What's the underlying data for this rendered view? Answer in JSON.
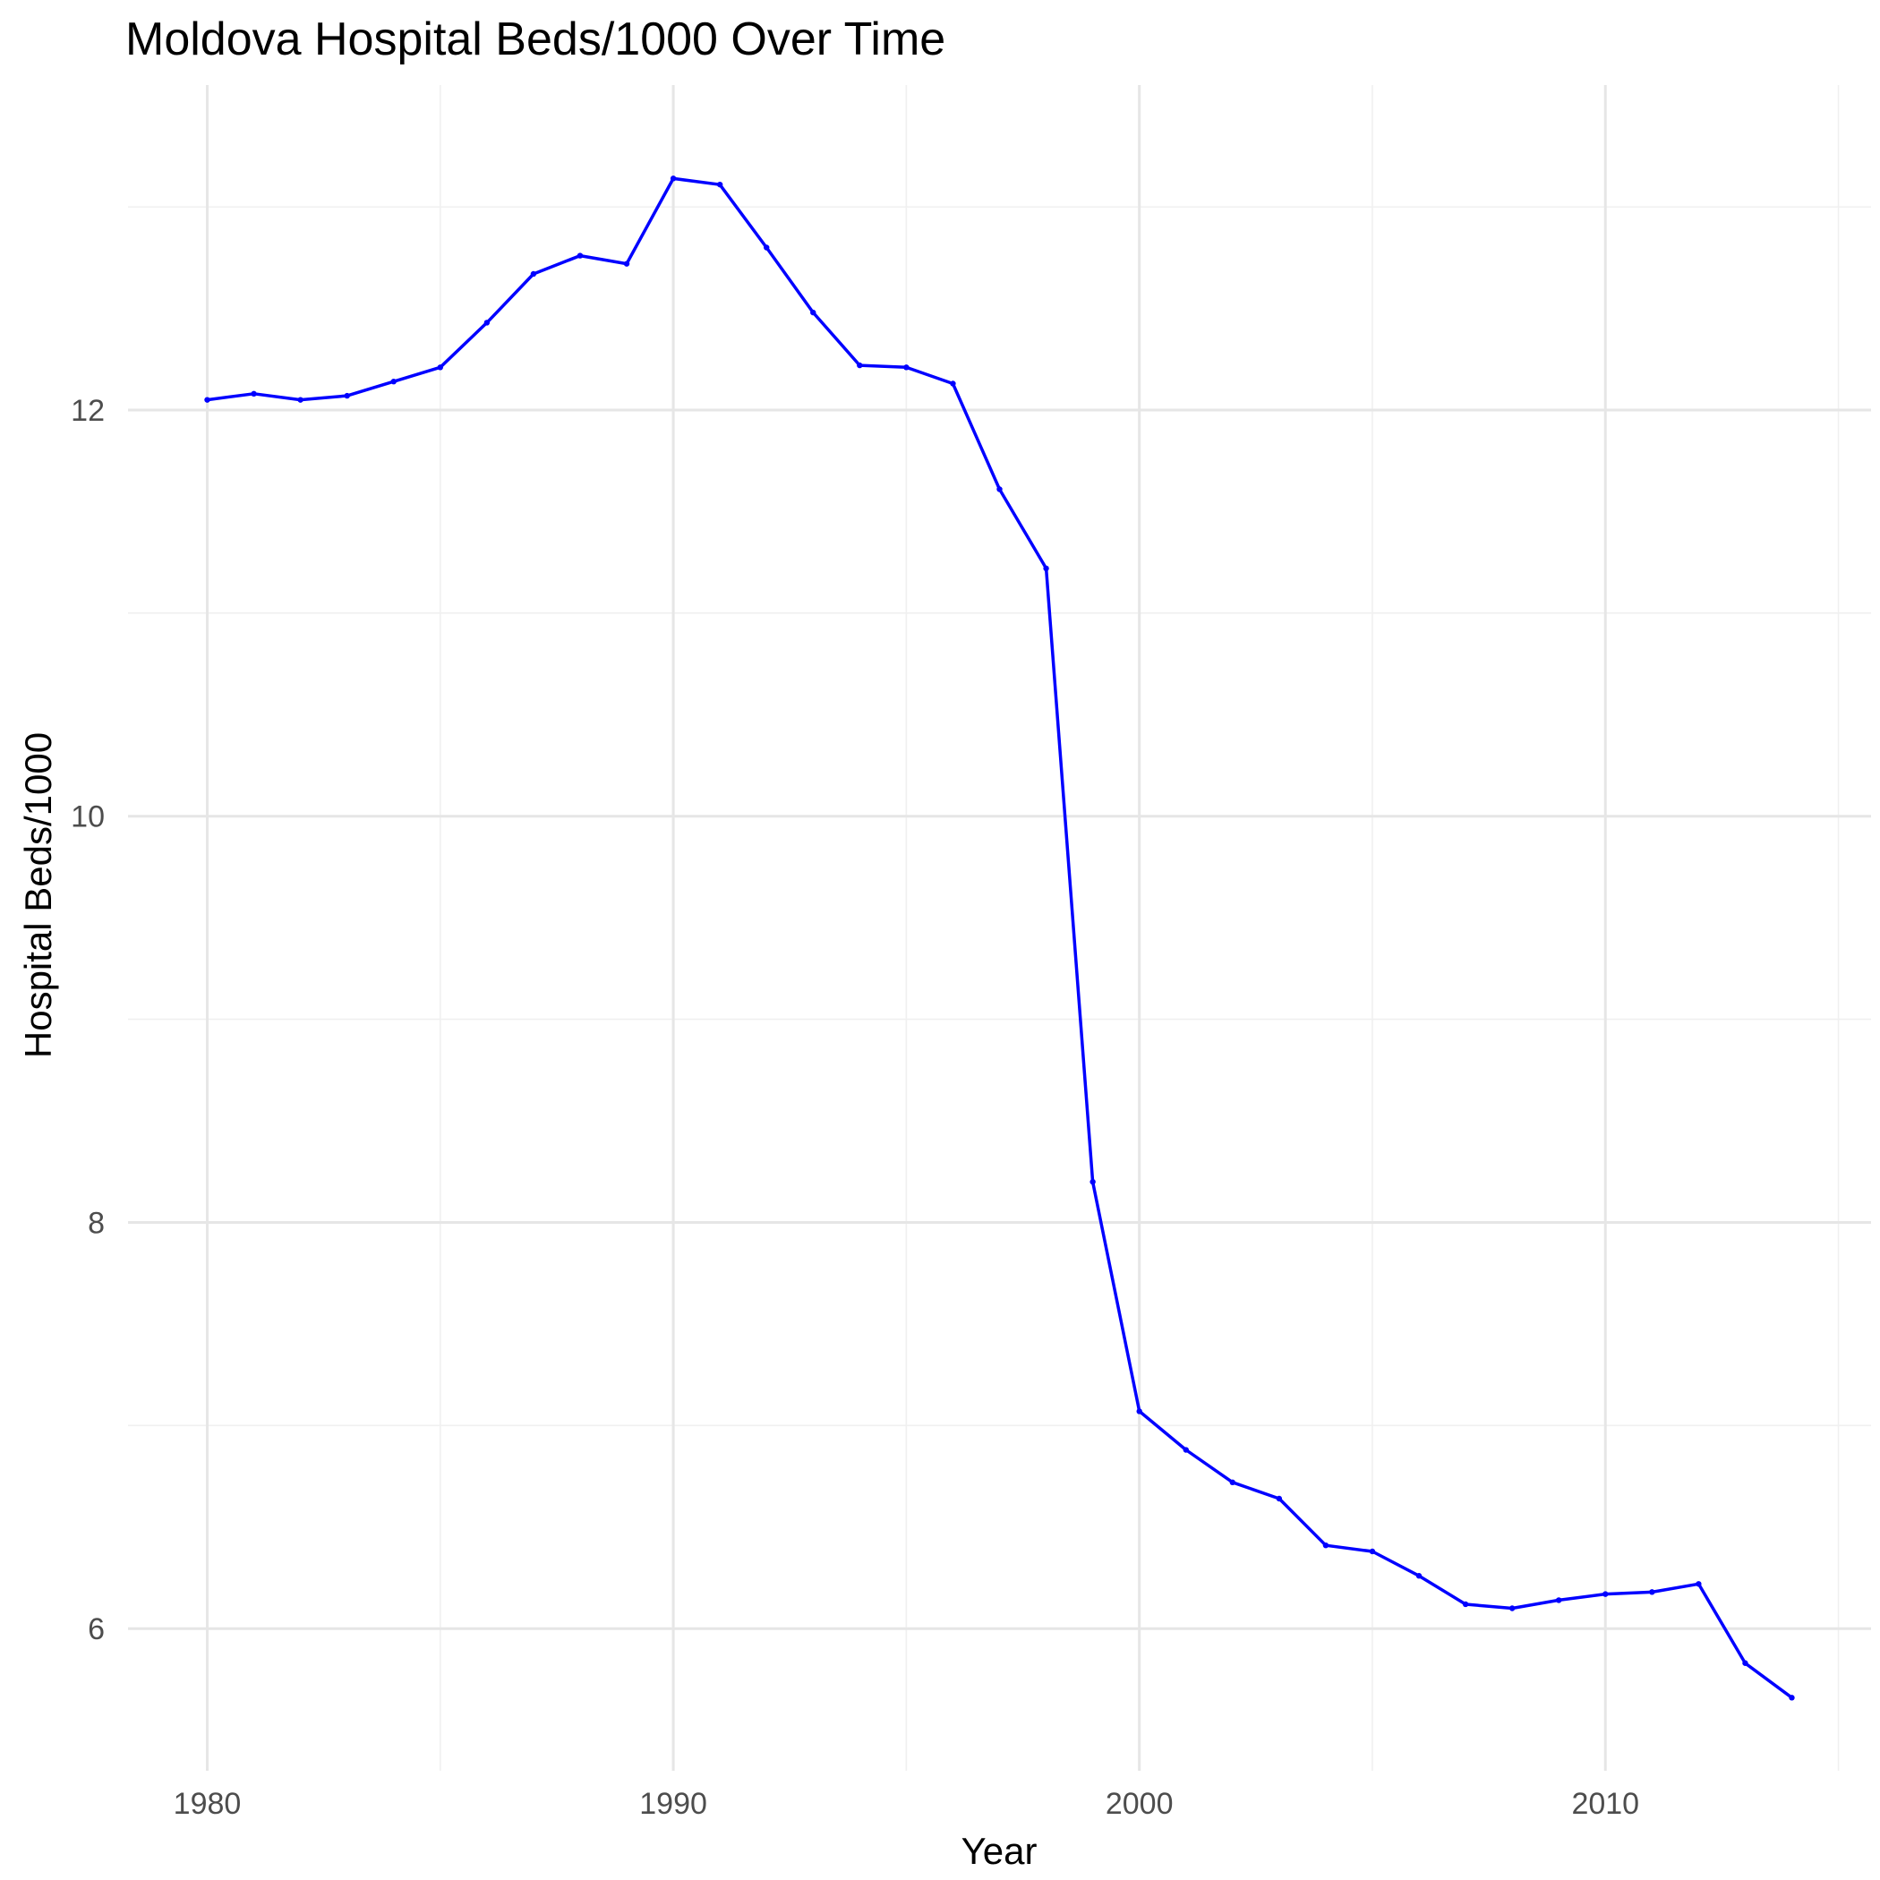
{
  "chart_data": {
    "type": "line",
    "title": "Moldova Hospital Beds/1000 Over Time",
    "xlabel": "Year",
    "ylabel": "Hospital Beds/1000",
    "xlim": [
      1978.3,
      2015.7
    ],
    "ylim": [
      5.3,
      13.6
    ],
    "x_ticks": [
      1980,
      1990,
      2000,
      2010
    ],
    "y_ticks": [
      6,
      8,
      10,
      12
    ],
    "x_minor": [
      1985,
      1995,
      2005,
      2015
    ],
    "y_minor": [
      7,
      9,
      11,
      13
    ],
    "grid": true,
    "legend": "none",
    "series": [
      {
        "name": "Hospital Beds/1000",
        "color": "#0000ff",
        "x": [
          1980,
          1981,
          1982,
          1983,
          1984,
          1985,
          1986,
          1987,
          1988,
          1989,
          1990,
          1991,
          1992,
          1993,
          1994,
          1995,
          1996,
          1997,
          1998,
          1999,
          2000,
          2001,
          2002,
          2003,
          2004,
          2005,
          2006,
          2007,
          2008,
          2009,
          2010,
          2011,
          2012,
          2013,
          2014
        ],
        "values": [
          12.05,
          12.08,
          12.05,
          12.07,
          12.14,
          12.21,
          12.43,
          12.67,
          12.76,
          12.72,
          13.14,
          13.11,
          12.8,
          12.48,
          12.22,
          12.21,
          12.13,
          11.61,
          11.22,
          8.2,
          7.07,
          6.88,
          6.72,
          6.64,
          6.41,
          6.38,
          6.26,
          6.12,
          6.1,
          6.14,
          6.17,
          6.18,
          6.22,
          5.83,
          5.66
        ]
      }
    ]
  }
}
